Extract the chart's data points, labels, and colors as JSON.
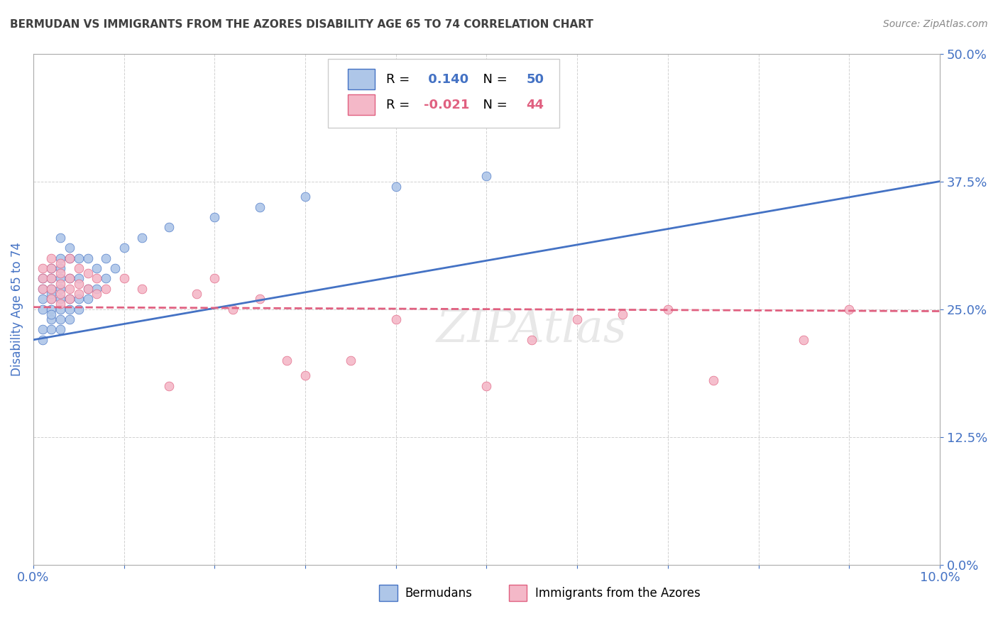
{
  "title": "BERMUDAN VS IMMIGRANTS FROM THE AZORES DISABILITY AGE 65 TO 74 CORRELATION CHART",
  "source": "Source: ZipAtlas.com",
  "ylabel_label": "Disability Age 65 to 74",
  "legend1_label": "Bermudans",
  "legend2_label": "Immigrants from the Azores",
  "r1": 0.14,
  "n1": 50,
  "r2": -0.021,
  "n2": 44,
  "color1": "#aec6e8",
  "color2": "#f4b8c8",
  "line_color1": "#4472c4",
  "line_color2": "#e06080",
  "background": "#ffffff",
  "grid_color": "#cccccc",
  "title_color": "#404040",
  "axis_label_color": "#4472c4",
  "xlim": [
    0.0,
    0.1
  ],
  "ylim": [
    0.0,
    0.5
  ],
  "blue_points_x": [
    0.001,
    0.001,
    0.001,
    0.001,
    0.001,
    0.001,
    0.002,
    0.002,
    0.002,
    0.002,
    0.002,
    0.002,
    0.002,
    0.002,
    0.002,
    0.003,
    0.003,
    0.003,
    0.003,
    0.003,
    0.003,
    0.003,
    0.003,
    0.003,
    0.004,
    0.004,
    0.004,
    0.004,
    0.004,
    0.004,
    0.005,
    0.005,
    0.005,
    0.005,
    0.006,
    0.006,
    0.006,
    0.007,
    0.007,
    0.008,
    0.008,
    0.009,
    0.01,
    0.012,
    0.015,
    0.02,
    0.025,
    0.03,
    0.04,
    0.05
  ],
  "blue_points_y": [
    0.23,
    0.25,
    0.26,
    0.27,
    0.28,
    0.22,
    0.24,
    0.25,
    0.26,
    0.27,
    0.28,
    0.29,
    0.23,
    0.245,
    0.265,
    0.23,
    0.24,
    0.25,
    0.26,
    0.27,
    0.28,
    0.29,
    0.3,
    0.32,
    0.24,
    0.25,
    0.26,
    0.28,
    0.3,
    0.31,
    0.25,
    0.26,
    0.28,
    0.3,
    0.26,
    0.27,
    0.3,
    0.27,
    0.29,
    0.28,
    0.3,
    0.29,
    0.31,
    0.32,
    0.33,
    0.34,
    0.35,
    0.36,
    0.37,
    0.38
  ],
  "pink_points_x": [
    0.001,
    0.001,
    0.001,
    0.002,
    0.002,
    0.002,
    0.002,
    0.002,
    0.003,
    0.003,
    0.003,
    0.003,
    0.003,
    0.004,
    0.004,
    0.004,
    0.004,
    0.005,
    0.005,
    0.005,
    0.006,
    0.006,
    0.007,
    0.007,
    0.008,
    0.01,
    0.012,
    0.015,
    0.018,
    0.02,
    0.022,
    0.025,
    0.028,
    0.03,
    0.035,
    0.04,
    0.05,
    0.055,
    0.06,
    0.065,
    0.07,
    0.075,
    0.085,
    0.09
  ],
  "pink_points_y": [
    0.27,
    0.28,
    0.29,
    0.26,
    0.27,
    0.28,
    0.29,
    0.3,
    0.255,
    0.265,
    0.275,
    0.285,
    0.295,
    0.26,
    0.27,
    0.28,
    0.3,
    0.265,
    0.275,
    0.29,
    0.27,
    0.285,
    0.265,
    0.28,
    0.27,
    0.28,
    0.27,
    0.175,
    0.265,
    0.28,
    0.25,
    0.26,
    0.2,
    0.185,
    0.2,
    0.24,
    0.175,
    0.22,
    0.24,
    0.245,
    0.25,
    0.18,
    0.22,
    0.25
  ],
  "trend1_x0": 0.0,
  "trend1_x1": 0.1,
  "trend1_y0": 0.22,
  "trend1_y1": 0.375,
  "trend2_x0": 0.0,
  "trend2_x1": 0.1,
  "trend2_y0": 0.252,
  "trend2_y1": 0.248
}
